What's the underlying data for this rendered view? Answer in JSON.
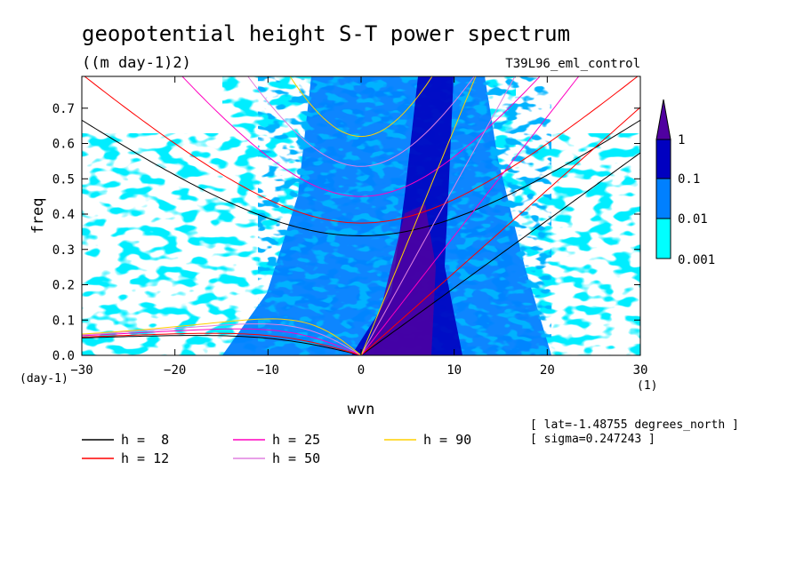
{
  "chart_data": {
    "type": "heatmap",
    "title": "geopotential height S-T power spectrum",
    "subtitle": "((m day-1)2)",
    "run_label": "T39L96_eml_control",
    "xlabel": "wvn",
    "ylabel": "freq",
    "x_unit": "(1)",
    "y_unit": "(day-1)",
    "xlim": [
      -30,
      30
    ],
    "ylim": [
      0,
      0.79
    ],
    "x_ticks": [
      "-30",
      "-20",
      "-10",
      "0",
      "10",
      "20",
      "30"
    ],
    "y_ticks": [
      "0.0",
      "0.1",
      "0.2",
      "0.3",
      "0.4",
      "0.5",
      "0.6",
      "0.7"
    ],
    "colorbar": {
      "labels": [
        "1",
        "0.1",
        "0.01",
        "0.001"
      ],
      "levels": [
        0.001,
        0.01,
        0.1,
        1
      ],
      "colors": [
        "#00ffff",
        "#0080ff",
        "#0000c0",
        "#5000a0"
      ]
    },
    "dispersion_curves": [
      {
        "h_label": "h =  8",
        "h": 8,
        "color": "#000000"
      },
      {
        "h_label": "h = 12",
        "h": 12,
        "color": "#ff0000"
      },
      {
        "h_label": "h = 25",
        "h": 25,
        "color": "#ff00c0"
      },
      {
        "h_label": "h = 50",
        "h": 50,
        "color": "#e080e0"
      },
      {
        "h_label": "h = 90",
        "h": 90,
        "color": "#ffd000"
      }
    ],
    "notes": [
      "[ lat=-1.48755 degrees_north ]",
      "[ sigma=0.247243 ]"
    ]
  }
}
